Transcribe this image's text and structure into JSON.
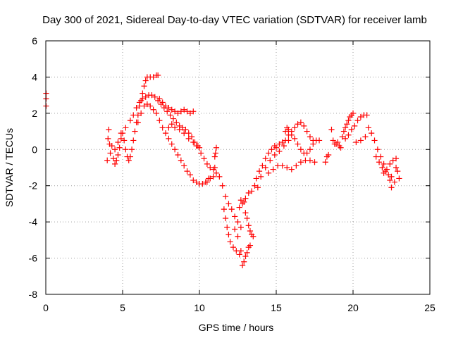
{
  "chart_data": {
    "type": "scatter",
    "title": "Day 300 of 2021, Sidereal Day-to-day VTEC variation (SDTVAR) for receiver lamb",
    "xlabel": "GPS time / hours",
    "ylabel": "SDTVAR / TECUs",
    "xlim": [
      0,
      25
    ],
    "ylim": [
      -8,
      6
    ],
    "x_ticks": [
      0,
      5,
      10,
      15,
      20,
      25
    ],
    "y_ticks": [
      -8,
      -6,
      -4,
      -2,
      0,
      2,
      4,
      6
    ],
    "grid": true,
    "marker": "plus",
    "series": [
      {
        "color": "#ff0000",
        "points": [
          [
            0.02,
            3.1
          ],
          [
            0.02,
            2.8
          ],
          [
            0.02,
            2.4
          ],
          [
            4.0,
            -0.6
          ],
          [
            4.05,
            0.6
          ],
          [
            4.1,
            1.1
          ],
          [
            4.15,
            0.3
          ],
          [
            4.2,
            -0.2
          ],
          [
            4.3,
            0.2
          ],
          [
            4.4,
            -0.5
          ],
          [
            4.5,
            -0.8
          ],
          [
            4.6,
            -0.6
          ],
          [
            4.7,
            -0.3
          ],
          [
            4.8,
            0.1
          ],
          [
            4.9,
            0.6
          ],
          [
            5.0,
            0.9
          ],
          [
            5.1,
            0.5
          ],
          [
            5.2,
            0.0
          ],
          [
            5.3,
            -0.4
          ],
          [
            5.4,
            -0.6
          ],
          [
            5.5,
            -0.4
          ],
          [
            5.6,
            0.0
          ],
          [
            5.7,
            0.5
          ],
          [
            5.8,
            1.0
          ],
          [
            5.9,
            1.5
          ],
          [
            6.0,
            1.9
          ],
          [
            6.1,
            2.4
          ],
          [
            6.2,
            2.7
          ],
          [
            6.3,
            3.1
          ],
          [
            6.4,
            3.5
          ],
          [
            6.5,
            3.8
          ],
          [
            6.6,
            4.0
          ],
          [
            6.8,
            4.0
          ],
          [
            7.0,
            4.0
          ],
          [
            7.2,
            4.1
          ],
          [
            7.3,
            4.1
          ],
          [
            4.5,
            0.0
          ],
          [
            4.7,
            0.4
          ],
          [
            4.9,
            0.9
          ],
          [
            5.2,
            1.2
          ],
          [
            5.5,
            1.6
          ],
          [
            5.7,
            1.9
          ],
          [
            5.9,
            2.3
          ],
          [
            6.1,
            2.6
          ],
          [
            6.3,
            2.8
          ],
          [
            6.5,
            2.9
          ],
          [
            6.7,
            3.0
          ],
          [
            6.9,
            3.0
          ],
          [
            7.1,
            2.9
          ],
          [
            7.3,
            2.7
          ],
          [
            7.5,
            2.5
          ],
          [
            7.7,
            2.3
          ],
          [
            7.9,
            2.1
          ],
          [
            8.1,
            1.9
          ],
          [
            8.3,
            1.7
          ],
          [
            8.5,
            1.5
          ],
          [
            8.7,
            1.3
          ],
          [
            8.9,
            1.2
          ],
          [
            9.1,
            1.1
          ],
          [
            9.3,
            0.9
          ],
          [
            9.5,
            0.7
          ],
          [
            9.7,
            0.4
          ],
          [
            9.9,
            0.2
          ],
          [
            10.0,
            0.1
          ],
          [
            6.0,
            1.5
          ],
          [
            6.2,
            2.0
          ],
          [
            6.4,
            2.4
          ],
          [
            6.6,
            2.5
          ],
          [
            6.8,
            2.4
          ],
          [
            7.0,
            2.2
          ],
          [
            7.2,
            2.0
          ],
          [
            7.4,
            1.6
          ],
          [
            7.6,
            1.2
          ],
          [
            7.8,
            0.9
          ],
          [
            8.0,
            0.6
          ],
          [
            8.2,
            0.3
          ],
          [
            8.4,
            0.0
          ],
          [
            8.6,
            -0.3
          ],
          [
            8.8,
            -0.6
          ],
          [
            9.0,
            -0.9
          ],
          [
            9.2,
            -1.2
          ],
          [
            9.4,
            -1.4
          ],
          [
            9.6,
            -1.7
          ],
          [
            9.8,
            -1.8
          ],
          [
            10.0,
            -1.9
          ],
          [
            10.2,
            -1.9
          ],
          [
            10.4,
            -1.8
          ],
          [
            10.6,
            -1.6
          ],
          [
            7.4,
            2.8
          ],
          [
            7.6,
            2.6
          ],
          [
            7.8,
            2.4
          ],
          [
            8.0,
            2.3
          ],
          [
            8.2,
            2.2
          ],
          [
            8.4,
            2.1
          ],
          [
            8.6,
            2.0
          ],
          [
            8.8,
            2.1
          ],
          [
            9.0,
            2.2
          ],
          [
            9.2,
            2.1
          ],
          [
            9.4,
            2.0
          ],
          [
            9.6,
            2.1
          ],
          [
            8.0,
            1.2
          ],
          [
            8.2,
            1.4
          ],
          [
            8.4,
            1.2
          ],
          [
            8.7,
            1.1
          ],
          [
            9.0,
            0.9
          ],
          [
            9.3,
            0.6
          ],
          [
            9.6,
            0.4
          ],
          [
            9.8,
            0.2
          ],
          [
            10.1,
            -0.2
          ],
          [
            10.3,
            -0.5
          ],
          [
            10.5,
            -0.8
          ],
          [
            10.7,
            -1.0
          ],
          [
            10.9,
            -1.1
          ],
          [
            11.0,
            -1.0
          ],
          [
            11.0,
            -0.4
          ],
          [
            11.05,
            -0.2
          ],
          [
            11.1,
            0.1
          ],
          [
            10.5,
            -1.8
          ],
          [
            10.7,
            -1.6
          ],
          [
            10.9,
            -1.5
          ],
          [
            11.1,
            -1.3
          ],
          [
            11.3,
            -1.5
          ],
          [
            11.5,
            -2.0
          ],
          [
            11.7,
            -2.6
          ],
          [
            11.9,
            -3.0
          ],
          [
            12.1,
            -3.3
          ],
          [
            12.3,
            -3.7
          ],
          [
            12.5,
            -4.0
          ],
          [
            12.7,
            -4.3
          ],
          [
            11.6,
            -3.3
          ],
          [
            11.7,
            -3.8
          ],
          [
            11.8,
            -4.3
          ],
          [
            11.9,
            -4.7
          ],
          [
            12.0,
            -5.1
          ],
          [
            12.2,
            -5.4
          ],
          [
            12.4,
            -5.6
          ],
          [
            12.6,
            -5.8
          ],
          [
            12.7,
            -5.6
          ],
          [
            12.3,
            -4.4
          ],
          [
            12.5,
            -4.8
          ],
          [
            12.6,
            -3.2
          ],
          [
            12.7,
            -2.8
          ],
          [
            12.8,
            -3.0
          ],
          [
            12.9,
            -2.9
          ],
          [
            12.8,
            -6.4
          ],
          [
            12.9,
            -6.2
          ],
          [
            13.0,
            -5.9
          ],
          [
            13.1,
            -5.7
          ],
          [
            13.2,
            -5.4
          ],
          [
            13.3,
            -5.3
          ],
          [
            13.0,
            -3.5
          ],
          [
            13.1,
            -3.8
          ],
          [
            13.2,
            -4.2
          ],
          [
            13.3,
            -4.5
          ],
          [
            13.4,
            -4.7
          ],
          [
            13.5,
            -4.8
          ],
          [
            13.0,
            -2.7
          ],
          [
            13.2,
            -2.4
          ],
          [
            13.4,
            -2.3
          ],
          [
            13.6,
            -2.0
          ],
          [
            13.7,
            -1.6
          ],
          [
            13.8,
            -2.1
          ],
          [
            13.9,
            -1.2
          ],
          [
            14.1,
            -0.9
          ],
          [
            14.3,
            -0.5
          ],
          [
            14.5,
            -0.2
          ],
          [
            14.7,
            0.0
          ],
          [
            14.9,
            0.2
          ],
          [
            15.0,
            0.1
          ],
          [
            15.2,
            0.3
          ],
          [
            15.4,
            0.4
          ],
          [
            15.6,
            0.5
          ],
          [
            15.8,
            0.8
          ],
          [
            16.0,
            1.0
          ],
          [
            16.2,
            1.2
          ],
          [
            16.4,
            1.4
          ],
          [
            16.6,
            1.5
          ],
          [
            16.8,
            1.3
          ],
          [
            17.0,
            1.0
          ],
          [
            17.2,
            0.7
          ],
          [
            17.4,
            0.5
          ],
          [
            17.6,
            0.5
          ],
          [
            17.8,
            0.5
          ],
          [
            14.0,
            -1.5
          ],
          [
            14.3,
            -1.0
          ],
          [
            14.6,
            -0.6
          ],
          [
            14.9,
            -0.3
          ],
          [
            15.2,
            -0.1
          ],
          [
            15.5,
            0.2
          ],
          [
            15.8,
            0.5
          ],
          [
            16.0,
            0.8
          ],
          [
            16.2,
            0.6
          ],
          [
            16.4,
            0.3
          ],
          [
            16.6,
            0.0
          ],
          [
            16.8,
            -0.2
          ],
          [
            17.0,
            -0.2
          ],
          [
            17.2,
            0.0
          ],
          [
            17.4,
            0.3
          ],
          [
            14.5,
            -1.3
          ],
          [
            14.8,
            -1.1
          ],
          [
            15.1,
            -0.9
          ],
          [
            15.4,
            -0.9
          ],
          [
            15.7,
            -1.0
          ],
          [
            16.0,
            -1.1
          ],
          [
            16.3,
            -0.9
          ],
          [
            16.6,
            -0.7
          ],
          [
            16.9,
            -0.6
          ],
          [
            17.2,
            -0.6
          ],
          [
            17.5,
            -0.7
          ],
          [
            15.6,
            1.0
          ],
          [
            15.7,
            1.2
          ],
          [
            15.8,
            1.1
          ],
          [
            18.2,
            -0.7
          ],
          [
            18.3,
            -0.4
          ],
          [
            18.4,
            -0.3
          ],
          [
            18.6,
            1.1
          ],
          [
            18.7,
            0.5
          ],
          [
            18.8,
            0.3
          ],
          [
            18.9,
            0.3
          ],
          [
            19.0,
            0.4
          ],
          [
            19.1,
            0.2
          ],
          [
            19.2,
            0.1
          ],
          [
            19.3,
            0.7
          ],
          [
            19.4,
            1.0
          ],
          [
            19.5,
            1.2
          ],
          [
            19.6,
            1.4
          ],
          [
            19.7,
            1.6
          ],
          [
            19.8,
            1.8
          ],
          [
            19.9,
            1.9
          ],
          [
            20.0,
            2.0
          ],
          [
            19.5,
            0.6
          ],
          [
            19.7,
            0.8
          ],
          [
            19.9,
            1.1
          ],
          [
            20.1,
            1.3
          ],
          [
            20.3,
            1.6
          ],
          [
            20.5,
            1.8
          ],
          [
            20.7,
            1.9
          ],
          [
            20.9,
            1.9
          ],
          [
            20.2,
            0.4
          ],
          [
            20.5,
            0.5
          ],
          [
            20.8,
            0.7
          ],
          [
            21.0,
            1.2
          ],
          [
            21.2,
            0.9
          ],
          [
            21.4,
            0.5
          ],
          [
            21.6,
            0.0
          ],
          [
            21.8,
            -0.4
          ],
          [
            22.0,
            -0.8
          ],
          [
            22.2,
            -1.1
          ],
          [
            22.3,
            -1.4
          ],
          [
            22.4,
            -1.7
          ],
          [
            22.5,
            -2.1
          ],
          [
            21.5,
            -0.4
          ],
          [
            21.7,
            -0.7
          ],
          [
            21.9,
            -1.0
          ],
          [
            22.0,
            -1.3
          ],
          [
            22.1,
            -1.2
          ],
          [
            22.4,
            -0.8
          ],
          [
            22.6,
            -0.6
          ],
          [
            22.8,
            -0.5
          ],
          [
            22.9,
            -1.2
          ],
          [
            23.0,
            -1.6
          ],
          [
            22.7,
            -1.8
          ],
          [
            22.5,
            -1.5
          ],
          [
            22.8,
            -1.0
          ]
        ]
      }
    ]
  }
}
